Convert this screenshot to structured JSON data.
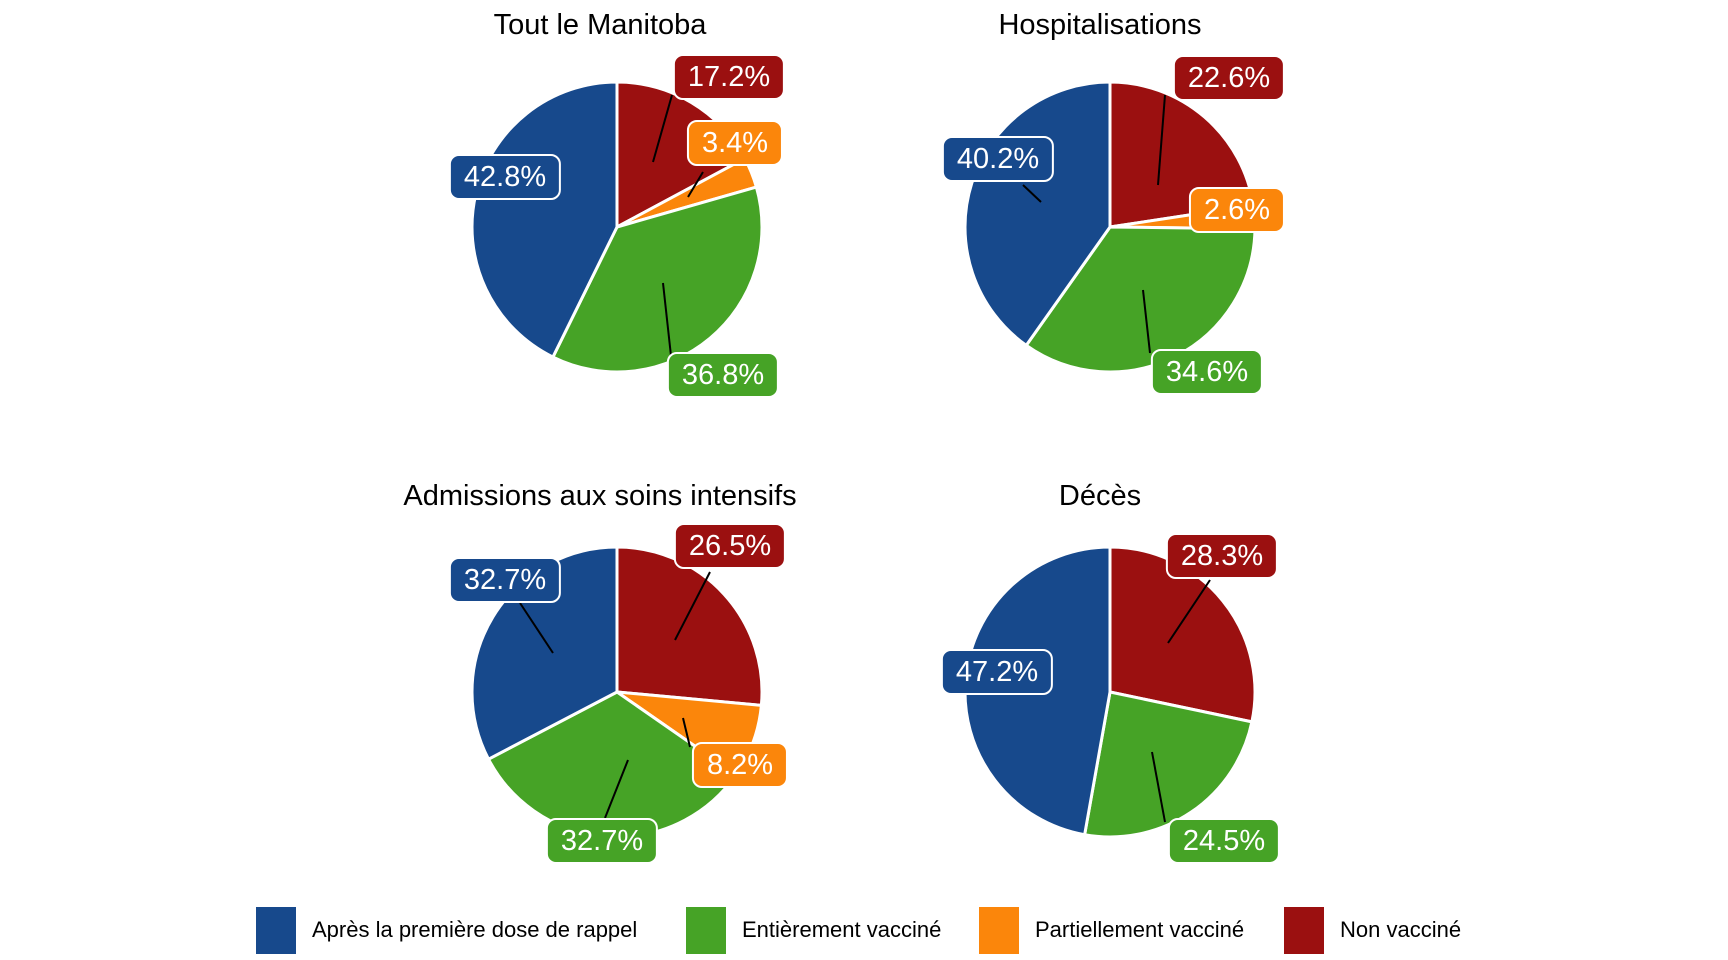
{
  "page": {
    "background": "#FFFFFF"
  },
  "palette": {
    "Après la première dose de rappel": "#17498C",
    "Entièrement vacciné": "#46A326",
    "Partiellement vacciné": "#FB860B",
    "Non vacciné": "#9B1010"
  },
  "chart_data": [
    {
      "type": "pie",
      "title": "Tout le Manitoba",
      "start": "12-oclock",
      "direction": "clockwise",
      "label_format": "percent",
      "slices": [
        {
          "category": "Non vacciné",
          "value": 17.2,
          "label_text": "17.2%"
        },
        {
          "category": "Partiellement vacciné",
          "value": 3.4,
          "label_text": "3.4%"
        },
        {
          "category": "Entièrement vacciné",
          "value": 36.8,
          "label_text": "36.8%"
        },
        {
          "category": "Après la première dose de rappel",
          "value": 42.8,
          "label_text": "42.8%"
        }
      ]
    },
    {
      "type": "pie",
      "title": "Hospitalisations",
      "start": "12-oclock",
      "direction": "clockwise",
      "label_format": "percent",
      "slices": [
        {
          "category": "Non vacciné",
          "value": 22.6,
          "label_text": "22.6%"
        },
        {
          "category": "Partiellement vacciné",
          "value": 2.6,
          "label_text": "2.6%"
        },
        {
          "category": "Entièrement vacciné",
          "value": 34.6,
          "label_text": "34.6%"
        },
        {
          "category": "Après la première dose de rappel",
          "value": 40.2,
          "label_text": "40.2%"
        }
      ]
    },
    {
      "type": "pie",
      "title": "Admissions aux soins intensifs",
      "start": "12-oclock",
      "direction": "clockwise",
      "label_format": "percent",
      "slices": [
        {
          "category": "Non vacciné",
          "value": 26.5,
          "label_text": "26.5%"
        },
        {
          "category": "Partiellement vacciné",
          "value": 8.2,
          "label_text": "8.2%"
        },
        {
          "category": "Entièrement vacciné",
          "value": 32.7,
          "label_text": "32.7%"
        },
        {
          "category": "Après la première dose de rappel",
          "value": 32.7,
          "label_text": "32.7%"
        }
      ]
    },
    {
      "type": "pie",
      "title": "Décès",
      "start": "12-oclock",
      "direction": "clockwise",
      "label_format": "percent",
      "slices": [
        {
          "category": "Non vacciné",
          "value": 28.3,
          "label_text": "28.3%"
        },
        {
          "category": "Entièrement vacciné",
          "value": 24.5,
          "label_text": "24.5%"
        },
        {
          "category": "Après la première dose de rappel",
          "value": 47.2,
          "label_text": "47.2%"
        }
      ]
    }
  ],
  "legend": {
    "position": "bottom",
    "items": [
      {
        "label": "Après la première dose de rappel",
        "color": "#17498C"
      },
      {
        "label": "Entièrement vacciné",
        "color": "#46A326"
      },
      {
        "label": "Partiellement vacciné",
        "color": "#FB860B"
      },
      {
        "label": "Non vacciné",
        "color": "#9B1010"
      }
    ]
  }
}
